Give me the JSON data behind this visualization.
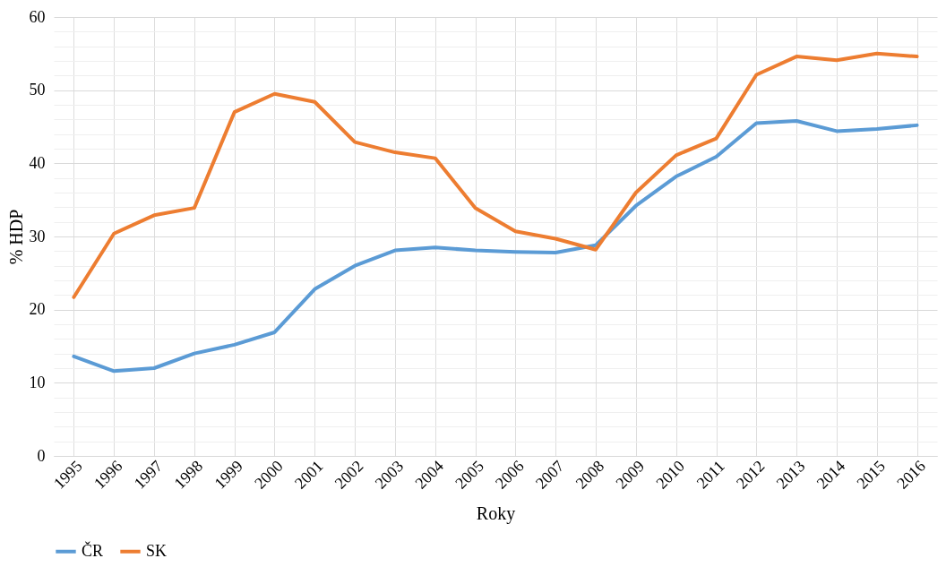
{
  "chart_data": {
    "type": "line",
    "xlabel": "Roky",
    "ylabel": "% HDP",
    "categories": [
      "1995",
      "1996",
      "1997",
      "1998",
      "1999",
      "2000",
      "2001",
      "2002",
      "2003",
      "2004",
      "2005",
      "2006",
      "2007",
      "2008",
      "2009",
      "2010",
      "2011",
      "2012",
      "2013",
      "2014",
      "2015",
      "2016"
    ],
    "series": [
      {
        "name": "ČR",
        "color": "#5b9bd5",
        "values": [
          13.6,
          11.6,
          12.0,
          14.0,
          15.2,
          16.9,
          22.8,
          26.0,
          28.1,
          28.5,
          28.1,
          27.9,
          27.8,
          28.8,
          34.2,
          38.2,
          40.9,
          45.5,
          45.8,
          44.4,
          44.7,
          45.2
        ]
      },
      {
        "name": "SK",
        "color": "#ed7d31",
        "values": [
          21.7,
          30.4,
          32.9,
          33.9,
          47.0,
          49.5,
          48.4,
          42.9,
          41.5,
          40.7,
          33.9,
          30.7,
          29.7,
          28.2,
          36.0,
          41.1,
          43.4,
          52.1,
          54.6,
          54.1,
          55.0,
          54.6
        ]
      }
    ],
    "ylim": [
      0,
      60
    ],
    "yticks": [
      0,
      {
        "value": 2,
        "label": null
      },
      {
        "value": 4,
        "label": null
      },
      {
        "value": 6,
        "label": null
      },
      {
        "value": 8,
        "label": null
      },
      10,
      {
        "value": 12,
        "label": null
      },
      {
        "value": 14,
        "label": null
      },
      {
        "value": 16,
        "label": null
      },
      {
        "value": 18,
        "label": null
      },
      20,
      {
        "value": 22,
        "label": null
      },
      {
        "value": 24,
        "label": null
      },
      {
        "value": 26,
        "label": null
      },
      {
        "value": 28,
        "label": null
      },
      30,
      {
        "value": 32,
        "label": null
      },
      {
        "value": 34,
        "label": null
      },
      {
        "value": 36,
        "label": null
      },
      {
        "value": 38,
        "label": null
      },
      40,
      {
        "value": 42,
        "label": null
      },
      {
        "value": 44,
        "label": null
      },
      {
        "value": 46,
        "label": null
      },
      {
        "value": 48,
        "label": null
      },
      50,
      {
        "value": 52,
        "label": null
      },
      {
        "value": 54,
        "label": null
      },
      {
        "value": 56,
        "label": null
      },
      {
        "value": 58,
        "label": null
      },
      60
    ],
    "grid": true,
    "legend": "bottom",
    "marker": "none",
    "line_style": "solid"
  }
}
